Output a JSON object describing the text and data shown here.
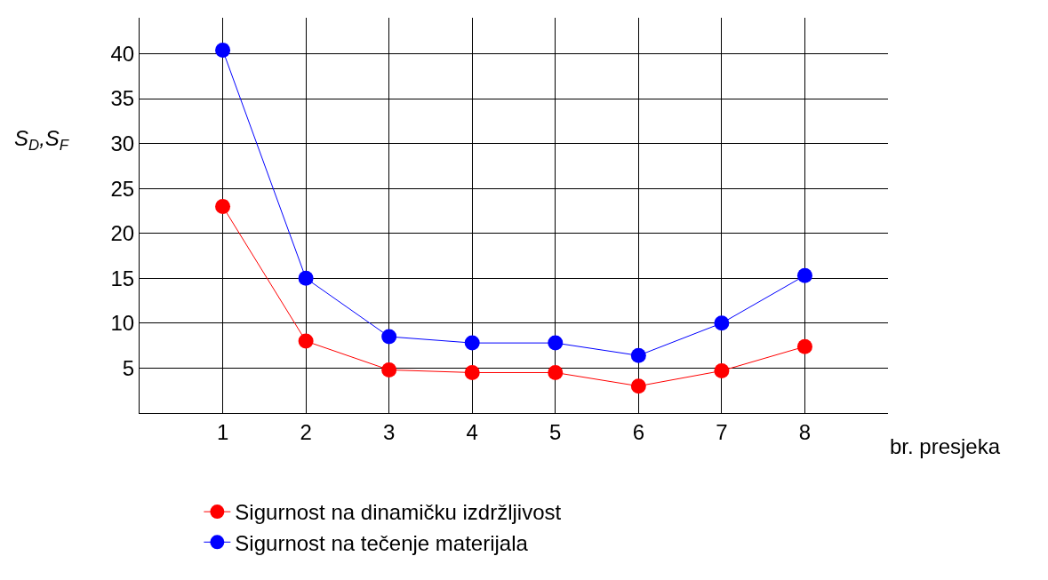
{
  "chart_data": {
    "type": "line",
    "xlabel": "br. presjeka",
    "ylabel": "S$_{D}$,S$_{F}$",
    "x": [
      1,
      2,
      3,
      4,
      5,
      6,
      7,
      8
    ],
    "xlim": [
      0,
      9
    ],
    "xticks": [
      1,
      2,
      3,
      4,
      5,
      6,
      7,
      8
    ],
    "ylim": [
      0,
      44
    ],
    "yticks": [
      5,
      10,
      15,
      20,
      25,
      30,
      35,
      40
    ],
    "grid": true,
    "marker": "circle",
    "line_style": "solid",
    "legend": "bottom",
    "series": [
      {
        "name": "Sigurnost na dinamičku izdržljivost",
        "color": "#ff0000",
        "values": [
          23,
          8,
          4.8,
          4.5,
          4.5,
          3,
          4.7,
          7.4
        ]
      },
      {
        "name": "Sigurnost na tečenje materijala",
        "color": "#0000ff",
        "values": [
          40.4,
          15,
          8.5,
          7.8,
          7.8,
          6.4,
          10,
          15.3
        ]
      }
    ]
  }
}
